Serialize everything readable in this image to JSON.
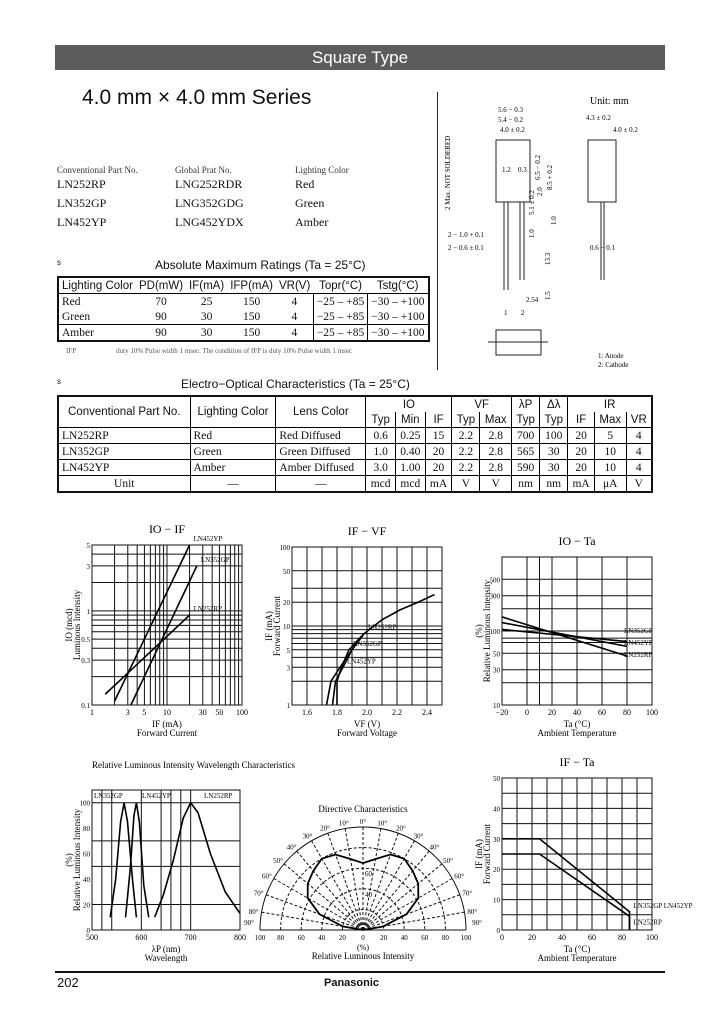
{
  "header": {
    "title": "Square Type",
    "series": "4.0 mm × 4.0 mm Series"
  },
  "parts": {
    "headers": [
      "Conventional Part No.",
      "Global Prat No.",
      "Lighting Color"
    ],
    "rows": [
      [
        "LN252RP",
        "LNG252RDR",
        "Red"
      ],
      [
        "LN352GP",
        "LNG352GDG",
        "Green"
      ],
      [
        "LN452YP",
        "LNG452YDX",
        "Amber"
      ]
    ]
  },
  "abs_max": {
    "marker": "s",
    "title": "Absolute Maximum Ratings (Ta = 25°C)",
    "headers": [
      "Lighting Color",
      "PD(mW)",
      "IF(mA)",
      "IFP(mA)",
      "VR(V)",
      "Topr(°C)",
      "Tstg(°C)"
    ],
    "rows": [
      [
        "Red",
        "70",
        "25",
        "150",
        "4",
        "−25 – +85",
        "−30 – +100"
      ],
      [
        "Green",
        "90",
        "30",
        "150",
        "4",
        "−25 – +85",
        "−30 – +100"
      ],
      [
        "Amber",
        "90",
        "30",
        "150",
        "4",
        "−25 – +85",
        "−30 – +100"
      ]
    ],
    "footnote_sym": "IFP",
    "footnote": "duty 10% Pulse width 1 msec. The condition of IFP is duty 10% Pulse width 1 msec"
  },
  "eo": {
    "marker": "s",
    "title": "Electro−Optical Characteristics (Ta = 25°C)",
    "h1": [
      "Conventional Part No.",
      "Lighting Color",
      "Lens Color",
      "IO",
      "VF",
      "λP",
      "Δλ",
      "IR"
    ],
    "h2": [
      "Typ",
      "Min",
      "IF",
      "Typ",
      "Max",
      "Typ",
      "Typ",
      "IF",
      "Max",
      "VR"
    ],
    "rows": [
      [
        "LN252RP",
        "Red",
        "Red Diffused",
        "0.6",
        "0.25",
        "15",
        "2.2",
        "2.8",
        "700",
        "100",
        "20",
        "5",
        "4"
      ],
      [
        "LN352GP",
        "Green",
        "Green Diffused",
        "1.0",
        "0.40",
        "20",
        "2.2",
        "2.8",
        "565",
        "30",
        "20",
        "10",
        "4"
      ],
      [
        "LN452YP",
        "Amber",
        "Amber Diffused",
        "3.0",
        "1.00",
        "20",
        "2.2",
        "2.8",
        "590",
        "30",
        "20",
        "10",
        "4"
      ],
      [
        "Unit",
        "—",
        "—",
        "mcd",
        "mcd",
        "mA",
        "V",
        "V",
        "nm",
        "nm",
        "mA",
        "μA",
        "V"
      ]
    ]
  },
  "drawing": {
    "unit": "Unit: mm",
    "dims": [
      "5.6 − 0.3",
      "5.4 − 0.2",
      "4.0 ± 0.2",
      "4.3 ± 0.2",
      "4.0 ± 0.2",
      "2 Max. NOT SOLDERED",
      "1.2",
      "0.3",
      "6.5 − 0.2",
      "8.5 + 0.2",
      "5.1 ± 0.2",
      "2.0",
      "1.0",
      "1.0",
      "2 − 1.0 + 0.1",
      "2 − 0.6 ± 0.1",
      "13.3",
      "0.6 − 0.1",
      "1.5",
      "2.54",
      "1",
      "2"
    ],
    "pins": [
      "1: Anode",
      "2: Cathode"
    ]
  },
  "chart_data": [
    {
      "type": "line",
      "title": "IO − IF",
      "xlabel": "IF (mA)",
      "xlabel2": "Forward Current",
      "ylabel": "IO (mcd)",
      "ylabel2": "Luminous Intensity",
      "xscale": "log",
      "yscale": "log",
      "xlim": [
        1,
        100
      ],
      "ylim": [
        0.1,
        5
      ],
      "xticks": [
        "1",
        "3",
        "5",
        "10",
        "30",
        "50",
        "100"
      ],
      "xtickv": [
        1,
        3,
        5,
        10,
        30,
        50,
        100
      ],
      "yticks": [
        "0.1",
        "0.3",
        "0.5",
        "1",
        "3",
        "5"
      ],
      "ytickv": [
        0.1,
        0.3,
        0.5,
        1,
        3,
        5
      ],
      "xgrid": [
        1,
        2,
        3,
        4,
        5,
        6,
        7,
        8,
        9,
        10,
        20,
        30,
        40,
        50,
        60,
        70,
        80,
        90,
        100
      ],
      "ygrid": [
        0.1,
        0.2,
        0.3,
        0.4,
        0.5,
        0.6,
        0.7,
        0.8,
        0.9,
        1,
        2,
        3,
        4,
        5
      ],
      "series": [
        {
          "name": "LN452YP",
          "x": [
            2,
            20
          ],
          "y": [
            0.11,
            5
          ]
        },
        {
          "name": "LN352GP",
          "x": [
            3.3,
            25
          ],
          "y": [
            0.1,
            3
          ]
        },
        {
          "name": "LN252RP",
          "x": [
            1.5,
            20
          ],
          "y": [
            0.13,
            0.9
          ]
        }
      ]
    },
    {
      "type": "line",
      "title": "IF − VF",
      "xlabel": "VF (V)",
      "xlabel2": "Forward Voltage",
      "ylabel": "IF (mA)",
      "ylabel2": "Forward Current",
      "xscale": "linear",
      "yscale": "log",
      "xlim": [
        1.5,
        2.5
      ],
      "ylim": [
        1,
        100
      ],
      "xticks": [
        "1.6",
        "1.8",
        "2.0",
        "2.2",
        "2.4"
      ],
      "xtickv": [
        1.6,
        1.8,
        2.0,
        2.2,
        2.4
      ],
      "yticks": [
        "1",
        "3",
        "5",
        "10",
        "20",
        "50",
        "100"
      ],
      "ytickv": [
        1,
        3,
        5,
        10,
        20,
        50,
        100
      ],
      "xgrid": [
        1.5,
        1.6,
        1.7,
        1.8,
        1.9,
        2.0,
        2.1,
        2.2,
        2.3,
        2.4,
        2.5
      ],
      "ygrid": [
        1,
        2,
        3,
        4,
        5,
        6,
        7,
        8,
        9,
        10,
        20,
        30,
        50,
        100
      ],
      "series": [
        {
          "name": "LN252RP",
          "x": [
            1.73,
            1.76,
            1.82,
            1.9,
            1.98,
            2.1,
            2.22,
            2.34,
            2.45
          ],
          "y": [
            1,
            2,
            3,
            5,
            8,
            12,
            16,
            20,
            25
          ]
        },
        {
          "name": "LN352GP",
          "x": [
            1.8,
            1.8,
            1.83,
            1.88,
            1.95,
            1.98
          ],
          "y": [
            1,
            2,
            3,
            5,
            7,
            8
          ]
        },
        {
          "name": "LN452YP",
          "x": [
            1.77,
            1.79,
            1.84,
            1.9,
            1.97
          ],
          "y": [
            1,
            2,
            3,
            5,
            7.5
          ]
        }
      ]
    },
    {
      "type": "line",
      "title": "IO − Ta",
      "xlabel": "Ta (°C)",
      "xlabel2": "Ambient Temperature",
      "ylabel": "(%)",
      "ylabel2": "Relative Luminous Intensity",
      "xscale": "linear",
      "yscale": "log",
      "xlim": [
        -20,
        100
      ],
      "ylim": [
        10,
        1000
      ],
      "xticks": [
        "−20",
        "0",
        "20",
        "40",
        "60",
        "80",
        "100"
      ],
      "xtickv": [
        -20,
        0,
        20,
        40,
        60,
        80,
        100
      ],
      "yticks": [
        "10",
        "30",
        "50",
        "100",
        "300",
        "500"
      ],
      "ytickv": [
        10,
        30,
        50,
        100,
        300,
        500
      ],
      "xgrid": [
        -20,
        0,
        10,
        20,
        40,
        60,
        80,
        100
      ],
      "ygrid": [
        10,
        20,
        30,
        50,
        70,
        80,
        100,
        200,
        300,
        500,
        1000
      ],
      "series": [
        {
          "name": "LN352GP",
          "x": [
            -20,
            80
          ],
          "y": [
            105,
            72
          ]
        },
        {
          "name": "LN452YP",
          "x": [
            -20,
            80
          ],
          "y": [
            130,
            62
          ]
        },
        {
          "name": "LN252RP",
          "x": [
            -20,
            80
          ],
          "y": [
            155,
            46
          ]
        }
      ]
    },
    {
      "type": "line",
      "title": "Relative Luminous Intensity Wavelength Characteristics",
      "xlabel": "λP (nm)",
      "xlabel2": "Wavelength",
      "ylabel": "(%)",
      "ylabel2": "Relative Luminous Intensity",
      "xscale": "linear",
      "yscale": "linear",
      "xlim": [
        500,
        800
      ],
      "ylim": [
        0,
        110
      ],
      "xticks": [
        "500",
        "600",
        "700",
        "800"
      ],
      "xtickv": [
        500,
        600,
        700,
        800
      ],
      "yticks": [
        "0",
        "20",
        "40",
        "60",
        "80",
        "100"
      ],
      "ytickv": [
        0,
        20,
        40,
        60,
        80,
        100
      ],
      "xgrid": [
        520,
        540,
        600,
        640,
        660,
        680,
        700
      ],
      "ygrid": [
        20,
        50,
        70,
        100
      ],
      "series": [
        {
          "name": "LN352GP",
          "x": [
            537,
            548,
            558,
            565,
            572,
            582,
            590
          ],
          "y": [
            10,
            40,
            85,
            100,
            85,
            40,
            10
          ]
        },
        {
          "name": "LN452YP",
          "x": [
            568,
            578,
            585,
            590,
            596,
            605,
            615
          ],
          "y": [
            10,
            50,
            90,
            100,
            85,
            35,
            10
          ]
        },
        {
          "name": "LN252RP",
          "x": [
            627,
            645,
            665,
            685,
            700,
            715,
            740,
            770,
            800
          ],
          "y": [
            10,
            28,
            55,
            88,
            100,
            92,
            60,
            30,
            13
          ]
        }
      ]
    },
    {
      "type": "polar",
      "title": "Directive Characteristics",
      "xlabel": "(%)",
      "xlabel2": "Relative Luminous Intensity",
      "xticks": [
        "100",
        "80",
        "60",
        "40",
        "20",
        "0",
        "20",
        "40",
        "60",
        "80",
        "100"
      ],
      "angle_labels": [
        "0°",
        "10°",
        "20°",
        "30°",
        "40°",
        "50°",
        "60°",
        "70°",
        "80°",
        "90°"
      ],
      "ring_labels": [
        "60",
        "40"
      ],
      "series": [
        {
          "angle": [
            0,
            10,
            20,
            30,
            40,
            50,
            60,
            70,
            80,
            90
          ],
          "value": [
            65,
            70,
            78,
            80,
            75,
            70,
            62,
            45,
            20,
            0
          ]
        }
      ]
    },
    {
      "type": "line",
      "title": "IF − Ta",
      "xlabel": "Ta (°C)",
      "xlabel2": "Ambient Temperature",
      "ylabel": "IF (mA)",
      "ylabel2": "Forward Current",
      "xscale": "linear",
      "yscale": "linear",
      "xlim": [
        0,
        100
      ],
      "ylim": [
        0,
        50
      ],
      "xticks": [
        "0",
        "20",
        "40",
        "60",
        "80",
        "100"
      ],
      "xtickv": [
        0,
        20,
        40,
        60,
        80,
        100
      ],
      "yticks": [
        "0",
        "10",
        "20",
        "30",
        "40",
        "50"
      ],
      "ytickv": [
        0,
        10,
        20,
        30,
        40,
        50
      ],
      "xgrid": [
        0,
        10,
        20,
        30,
        40,
        50,
        60,
        70,
        80,
        90,
        100
      ],
      "ygrid": [
        0,
        5,
        10,
        15,
        20,
        25,
        30,
        35,
        40,
        45,
        50
      ],
      "series": [
        {
          "name": "LN352GP LN452YP",
          "x": [
            0,
            25,
            85,
            85
          ],
          "y": [
            30,
            30,
            6,
            0
          ]
        },
        {
          "name": "LN252RP",
          "x": [
            0,
            25,
            85,
            85
          ],
          "y": [
            25,
            25,
            4.5,
            0
          ]
        }
      ]
    }
  ],
  "footer": {
    "page": "202",
    "brand": "Panasonic"
  }
}
